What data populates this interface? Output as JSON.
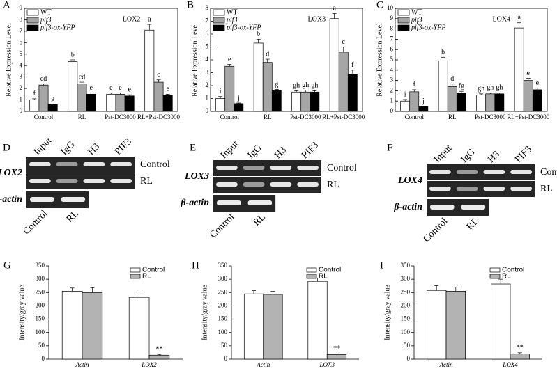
{
  "chart_data": [
    {
      "type": "bar",
      "panel": "A",
      "title": "LOX2",
      "ylabel": "Relative Expression Level",
      "categories": [
        "Control",
        "RL",
        "Pst-DC3000",
        "RL+Pst-DC3000"
      ],
      "ylim": [
        0,
        9
      ],
      "yticks": [
        0,
        1,
        2,
        3,
        4,
        5,
        6,
        7,
        8,
        9
      ],
      "frame": true,
      "legend": "upper left",
      "series": [
        {
          "name": "WT",
          "color": "#ffffff",
          "values": [
            1.0,
            4.35,
            1.5,
            7.1
          ],
          "errors": [
            0.1,
            0.15,
            0.1,
            0.5
          ],
          "letters": [
            "f",
            "b",
            "e",
            "a"
          ]
        },
        {
          "name": "pif3",
          "color": "#a6a6a6",
          "values": [
            2.3,
            2.4,
            1.5,
            2.55
          ],
          "errors": [
            0.1,
            0.15,
            0.1,
            0.2
          ],
          "letters": [
            "cd",
            "cd",
            "e",
            "c"
          ]
        },
        {
          "name": "pif3-ox-YFP",
          "color": "#000000",
          "values": [
            0.6,
            1.5,
            1.35,
            1.4
          ],
          "errors": [
            0.05,
            0.1,
            0.1,
            0.1
          ],
          "letters": [
            "g",
            "e",
            "e",
            "e"
          ]
        }
      ]
    },
    {
      "type": "bar",
      "panel": "B",
      "title": "LOX3",
      "ylabel": "Relative Expression Level",
      "categories": [
        "Control",
        "RL",
        "Pst-DC3000",
        "RL+Pst-DC3000"
      ],
      "ylim": [
        0,
        8
      ],
      "yticks": [
        0,
        1,
        2,
        3,
        4,
        5,
        6,
        7,
        8
      ],
      "frame": true,
      "legend": "upper left",
      "series": [
        {
          "name": "WT",
          "color": "#ffffff",
          "values": [
            1.0,
            5.3,
            1.5,
            7.2
          ],
          "errors": [
            0.15,
            0.3,
            0.1,
            0.4
          ],
          "letters": [
            "i",
            "b",
            "gh",
            "a"
          ]
        },
        {
          "name": "pif3",
          "color": "#a6a6a6",
          "values": [
            3.5,
            3.8,
            1.5,
            4.6
          ],
          "errors": [
            0.15,
            0.25,
            0.15,
            0.4
          ],
          "letters": [
            "e",
            "d",
            "gh",
            "c"
          ]
        },
        {
          "name": "pif3-ox-YFP",
          "color": "#000000",
          "values": [
            0.6,
            1.6,
            1.5,
            2.9
          ],
          "errors": [
            0.05,
            0.1,
            0.1,
            0.3
          ],
          "letters": [
            "j",
            "g",
            "gh",
            "f"
          ]
        }
      ]
    },
    {
      "type": "bar",
      "panel": "C",
      "title": "LOX4",
      "ylabel": "Relative Expression Level",
      "categories": [
        "Control",
        "RL",
        "Pst-DC3000",
        "RL+Pst-DC3000"
      ],
      "ylim": [
        0,
        10
      ],
      "yticks": [
        0,
        1,
        2,
        3,
        4,
        5,
        6,
        7,
        8,
        9,
        10
      ],
      "frame": true,
      "legend": "upper left",
      "series": [
        {
          "name": "WT",
          "color": "#ffffff",
          "values": [
            1.0,
            4.9,
            1.6,
            8.1
          ],
          "errors": [
            0.15,
            0.35,
            0.1,
            0.5
          ],
          "letters": [
            "i",
            "b",
            "gh",
            "a"
          ]
        },
        {
          "name": "pif3",
          "color": "#a6a6a6",
          "values": [
            1.9,
            2.4,
            1.7,
            3.0
          ],
          "errors": [
            0.2,
            0.25,
            0.1,
            0.2
          ],
          "letters": [
            "f",
            "d",
            "gh",
            "e"
          ]
        },
        {
          "name": "pif3-ox-YFP",
          "color": "#000000",
          "values": [
            0.45,
            1.8,
            1.7,
            2.1
          ],
          "errors": [
            0.05,
            0.15,
            0.1,
            0.15
          ],
          "letters": [
            "j",
            "fg",
            "gh",
            "e"
          ]
        }
      ]
    },
    {
      "type": "bar",
      "panel": "G",
      "ylabel": "Intensity/gray value",
      "categories": [
        "Actin",
        "LOX2"
      ],
      "ylim": [
        0,
        350
      ],
      "yticks": [
        0,
        50,
        100,
        150,
        200,
        250,
        300,
        350
      ],
      "frame": false,
      "legend": "upper right",
      "series": [
        {
          "name": "Control",
          "color": "#ffffff",
          "values": [
            255,
            232
          ],
          "errors": [
            12,
            12
          ]
        },
        {
          "name": "RL",
          "color": "#b3b3b3",
          "values": [
            250,
            15
          ],
          "errors": [
            18,
            3
          ],
          "significance": [
            null,
            "**"
          ]
        }
      ]
    },
    {
      "type": "bar",
      "panel": "H",
      "ylabel": "Intensity/gray value",
      "categories": [
        "Actin",
        "LOX3"
      ],
      "ylim": [
        0,
        350
      ],
      "yticks": [
        0,
        50,
        100,
        150,
        200,
        250,
        300,
        350
      ],
      "frame": false,
      "legend": "upper right",
      "series": [
        {
          "name": "Control",
          "color": "#ffffff",
          "values": [
            245,
            292
          ],
          "errors": [
            12,
            12
          ]
        },
        {
          "name": "RL",
          "color": "#b3b3b3",
          "values": [
            243,
            17
          ],
          "errors": [
            12,
            3
          ],
          "significance": [
            null,
            "**"
          ]
        }
      ]
    },
    {
      "type": "bar",
      "panel": "I",
      "ylabel": "Intensity/gray value",
      "categories": [
        "Actin",
        "LOX4"
      ],
      "ylim": [
        0,
        350
      ],
      "yticks": [
        0,
        50,
        100,
        150,
        200,
        250,
        300,
        350
      ],
      "frame": false,
      "legend": "upper right",
      "series": [
        {
          "name": "Control",
          "color": "#ffffff",
          "values": [
            258,
            282
          ],
          "errors": [
            18,
            18
          ]
        },
        {
          "name": "RL",
          "color": "#b3b3b3",
          "values": [
            255,
            20
          ],
          "errors": [
            15,
            4
          ],
          "significance": [
            null,
            "**"
          ]
        }
      ]
    }
  ],
  "gels": [
    {
      "panel": "D",
      "lanes": [
        "Input",
        "IgG",
        "H3",
        "PIF3"
      ],
      "gene": "LOX2",
      "rows": [
        "Control",
        "RL"
      ],
      "reference": "β-actin",
      "reference_lanes": [
        "Control",
        "RL"
      ]
    },
    {
      "panel": "E",
      "lanes": [
        "Input",
        "IgG",
        "H3",
        "PIF3"
      ],
      "gene": "LOX3",
      "rows": [
        "Control",
        "RL"
      ],
      "reference": "β-actin",
      "reference_lanes": [
        "Control",
        "RL"
      ]
    },
    {
      "panel": "F",
      "lanes": [
        "Input",
        "IgG",
        "H3",
        "PIF3"
      ],
      "gene": "LOX4",
      "rows": [
        "Control",
        "RL"
      ],
      "reference": "β-actin",
      "reference_lanes": [
        "Control",
        "RL"
      ]
    }
  ]
}
